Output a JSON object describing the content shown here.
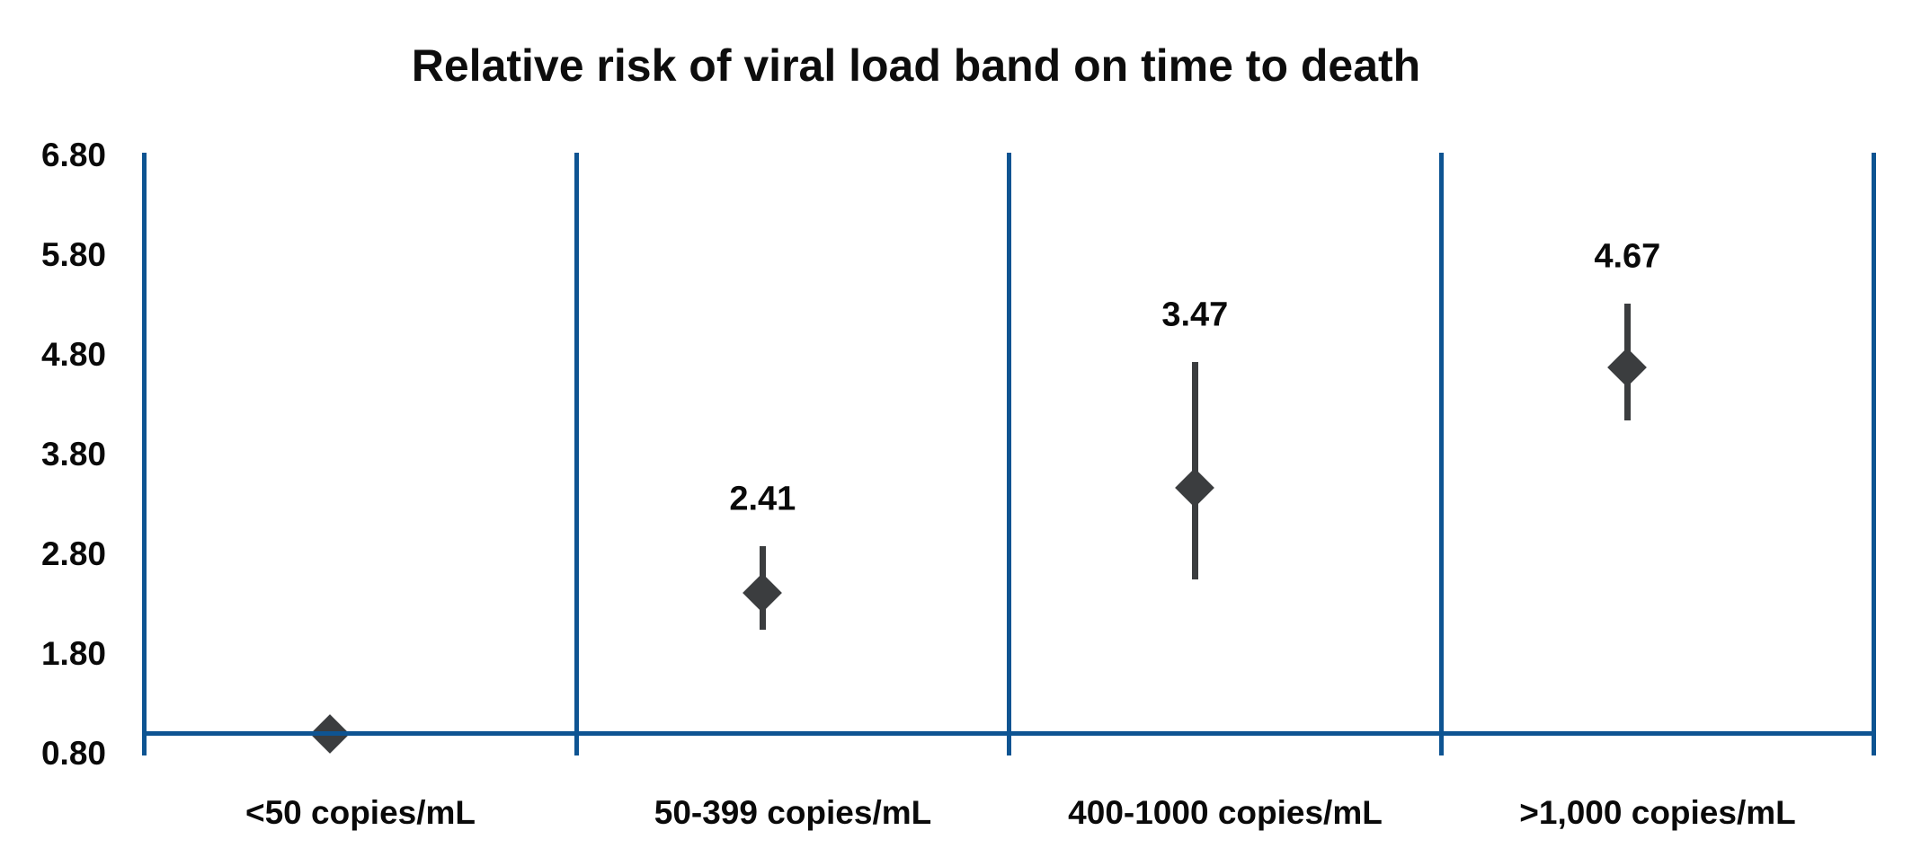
{
  "title": "Relative risk of viral load band on time to death",
  "colors": {
    "axis_blue": "#0e5492",
    "marker_gray": "#3b3d3f",
    "text_black": "#0a0a0a"
  },
  "chart_data": {
    "type": "scatter",
    "subtype": "point-estimate-with-error-bars",
    "title": "Relative risk of viral load band on time to death",
    "categories": [
      "<50 copies/mL",
      "50-399 copies/mL",
      "400-1000 copies/mL",
      ">1,000 copies/mL"
    ],
    "series": [
      {
        "name": "Relative risk",
        "values": [
          1.0,
          2.41,
          3.47,
          4.67
        ],
        "point_labels": [
          "",
          "2.41",
          "3.47",
          "4.67"
        ],
        "ci_lower": [
          null,
          2.04,
          2.55,
          4.14
        ],
        "ci_upper": [
          null,
          2.88,
          4.73,
          5.31
        ]
      }
    ],
    "xlabel": "",
    "ylabel": "",
    "ylim": [
      0.8,
      6.8
    ],
    "y_ticks": [
      "0.80",
      "1.80",
      "2.80",
      "3.80",
      "4.80",
      "5.80",
      "6.80"
    ],
    "y_tick_values": [
      0.8,
      1.8,
      2.8,
      3.8,
      4.8,
      5.8,
      6.8
    ],
    "x_axis_crosses_at": 1.0,
    "grid": "vertical-category-separators",
    "legend": "none",
    "marker": "diamond"
  }
}
